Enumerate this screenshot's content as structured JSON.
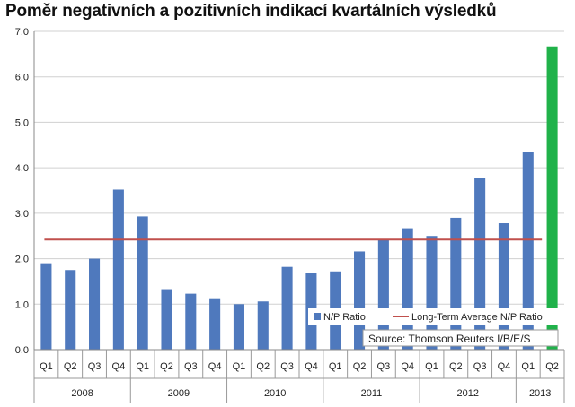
{
  "chart_data": {
    "type": "bar",
    "title": "Poměr negativních a pozitivních indikací kvartálních výsledků",
    "xlabel": "",
    "ylabel": "",
    "ylim": [
      0,
      7
    ],
    "yticks": [
      "0.0",
      "1.0",
      "2.0",
      "3.0",
      "4.0",
      "5.0",
      "6.0",
      "7.0"
    ],
    "grid": true,
    "categories": [
      "Q1",
      "Q2",
      "Q3",
      "Q4",
      "Q1",
      "Q2",
      "Q3",
      "Q4",
      "Q1",
      "Q2",
      "Q3",
      "Q4",
      "Q1",
      "Q2",
      "Q3",
      "Q4",
      "Q1",
      "Q2",
      "Q3",
      "Q4",
      "Q1",
      "Q2"
    ],
    "years": [
      "2008",
      "2009",
      "2010",
      "2011",
      "2012",
      "2013"
    ],
    "series": [
      {
        "name": "N/P Ratio",
        "color": "#4f79bd",
        "values": [
          1.9,
          1.75,
          2.0,
          3.52,
          2.93,
          1.33,
          1.23,
          1.13,
          1.0,
          1.06,
          1.82,
          1.68,
          1.72,
          2.16,
          2.41,
          2.67,
          2.5,
          2.9,
          3.77,
          2.78,
          4.35,
          6.67
        ]
      },
      {
        "name": "Long-Term Average N/P Ratio",
        "color": "#c0504d",
        "type": "line",
        "value": 2.42
      }
    ],
    "highlight": {
      "index": 21,
      "color": "#20b24a"
    },
    "legend_position": "bottom-right",
    "source": "Source: Thomson Reuters I/B/E/S"
  }
}
